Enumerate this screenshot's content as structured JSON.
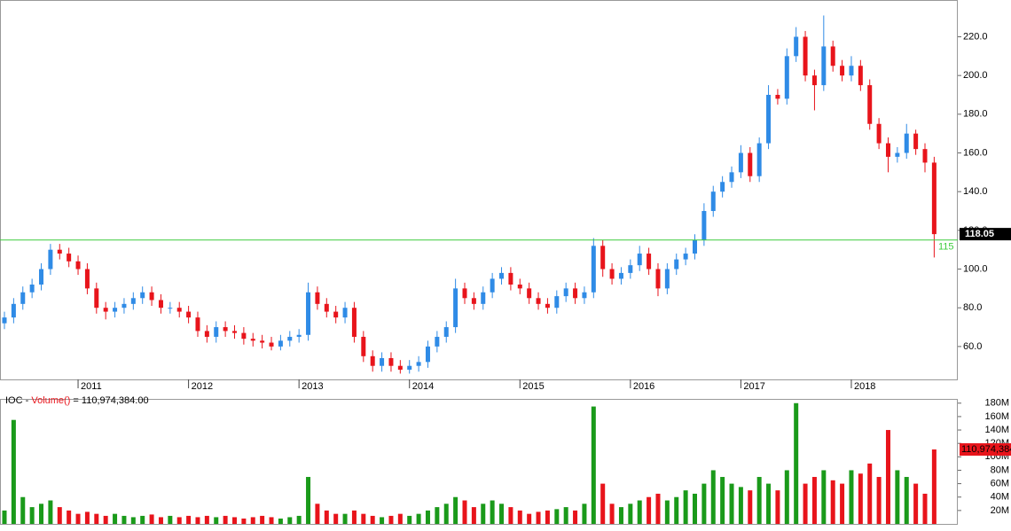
{
  "chart_data": {
    "type": "candlestick",
    "open": [
      72,
      75,
      82,
      88,
      92,
      100,
      110,
      108,
      104,
      100,
      90,
      80,
      78,
      80,
      82,
      85,
      88,
      84,
      80,
      80,
      78,
      75,
      68,
      65,
      70,
      68,
      67,
      64,
      63,
      62,
      60,
      63,
      65,
      66,
      88,
      82,
      78,
      75,
      80,
      65,
      55,
      50,
      54,
      50,
      48,
      50,
      52,
      60,
      65,
      70,
      90,
      85,
      82,
      88,
      95,
      98,
      92,
      90,
      85,
      82,
      80,
      86,
      90,
      85,
      88,
      112,
      100,
      95,
      98,
      102,
      108,
      100,
      90,
      100,
      105,
      108,
      115,
      130,
      140,
      145,
      150,
      160,
      148,
      165,
      190,
      188,
      210,
      220,
      200,
      195,
      215,
      205,
      200,
      205,
      195,
      175,
      165,
      158,
      160,
      170,
      162,
      155
    ],
    "high": [
      78,
      85,
      91,
      95,
      103,
      113,
      113,
      111,
      107,
      103,
      93,
      83,
      83,
      85,
      88,
      91,
      91,
      87,
      83,
      83,
      81,
      78,
      71,
      73,
      73,
      71,
      70,
      67,
      66,
      65,
      66,
      68,
      69,
      93,
      91,
      85,
      81,
      83,
      83,
      68,
      58,
      57,
      57,
      53,
      53,
      55,
      63,
      68,
      73,
      95,
      93,
      88,
      91,
      98,
      101,
      101,
      95,
      93,
      88,
      85,
      89,
      93,
      93,
      91,
      116,
      115,
      103,
      101,
      105,
      112,
      111,
      103,
      103,
      108,
      111,
      118,
      134,
      143,
      148,
      153,
      164,
      163,
      168,
      195,
      193,
      214,
      225,
      223,
      203,
      231,
      218,
      208,
      210,
      208,
      198,
      178,
      168,
      163,
      175,
      172,
      165,
      158
    ],
    "low": [
      69,
      72,
      79,
      85,
      89,
      97,
      105,
      101,
      97,
      87,
      77,
      74,
      75,
      77,
      79,
      82,
      81,
      77,
      77,
      75,
      72,
      65,
      62,
      62,
      65,
      64,
      61,
      60,
      59,
      58,
      58,
      60,
      62,
      63,
      79,
      75,
      72,
      72,
      62,
      52,
      47,
      47,
      47,
      46,
      46,
      47,
      49,
      57,
      62,
      67,
      82,
      79,
      79,
      85,
      92,
      89,
      87,
      82,
      79,
      77,
      77,
      83,
      82,
      82,
      85,
      96,
      92,
      92,
      95,
      99,
      97,
      86,
      87,
      97,
      102,
      105,
      112,
      127,
      137,
      142,
      147,
      145,
      145,
      162,
      185,
      185,
      207,
      197,
      182,
      192,
      202,
      197,
      197,
      192,
      172,
      162,
      150,
      155,
      157,
      159,
      150,
      106
    ],
    "close": [
      75,
      82,
      88,
      92,
      100,
      110,
      108,
      104,
      100,
      90,
      80,
      78,
      80,
      82,
      85,
      88,
      84,
      80,
      80,
      78,
      75,
      68,
      65,
      70,
      68,
      67,
      64,
      63,
      62,
      60,
      63,
      65,
      66,
      88,
      82,
      78,
      75,
      80,
      65,
      55,
      50,
      54,
      50,
      48,
      50,
      52,
      60,
      65,
      70,
      90,
      85,
      82,
      88,
      95,
      98,
      92,
      90,
      85,
      82,
      80,
      86,
      90,
      85,
      88,
      112,
      100,
      95,
      98,
      102,
      108,
      100,
      90,
      100,
      105,
      108,
      115,
      130,
      140,
      145,
      150,
      160,
      148,
      165,
      190,
      188,
      210,
      220,
      200,
      195,
      215,
      205,
      200,
      205,
      195,
      175,
      165,
      158,
      160,
      170,
      162,
      155,
      118.05
    ],
    "volume": [
      20,
      155,
      40,
      25,
      30,
      35,
      25,
      20,
      15,
      18,
      15,
      12,
      15,
      12,
      10,
      12,
      14,
      10,
      12,
      10,
      12,
      10,
      12,
      10,
      12,
      10,
      8,
      10,
      12,
      10,
      8,
      10,
      12,
      70,
      30,
      20,
      15,
      15,
      20,
      15,
      12,
      10,
      12,
      15,
      12,
      15,
      20,
      25,
      30,
      40,
      35,
      25,
      30,
      35,
      30,
      25,
      20,
      15,
      18,
      20,
      22,
      25,
      20,
      30,
      175,
      60,
      30,
      25,
      30,
      35,
      40,
      45,
      35,
      40,
      50,
      45,
      60,
      80,
      70,
      60,
      55,
      50,
      70,
      60,
      50,
      80,
      180,
      60,
      70,
      80,
      65,
      60,
      80,
      75,
      90,
      70,
      140,
      80,
      70,
      60,
      45,
      110.974384
    ],
    "up_color": "#2f8be6",
    "down_color": "#e8141b",
    "volume_up_color": "#1a9a1a",
    "volume_down_color": "#e8141b",
    "ylim": [
      43,
      239
    ],
    "yticks": [
      {
        "value": 60,
        "label": "60.0"
      },
      {
        "value": 80,
        "label": "80.0"
      },
      {
        "value": 100,
        "label": "100.0"
      },
      {
        "value": 120,
        "label": "120.0"
      },
      {
        "value": 140,
        "label": "140.0"
      },
      {
        "value": 160,
        "label": "160.0"
      },
      {
        "value": 180,
        "label": "180.0"
      },
      {
        "value": 200,
        "label": "200.0"
      },
      {
        "value": 220,
        "label": "220.0"
      }
    ],
    "xticks": [
      {
        "value": 8,
        "label": "2011"
      },
      {
        "value": 20,
        "label": "2012"
      },
      {
        "value": 32,
        "label": "2013"
      },
      {
        "value": 44,
        "label": "2014"
      },
      {
        "value": 56,
        "label": "2015"
      },
      {
        "value": 68,
        "label": "2016"
      },
      {
        "value": 80,
        "label": "2017"
      },
      {
        "value": 92,
        "label": "2018"
      }
    ],
    "volume_ylim": [
      0,
      185
    ],
    "volume_ticks": [
      {
        "value": 20,
        "label": "20M"
      },
      {
        "value": 40,
        "label": "40M"
      },
      {
        "value": 60,
        "label": "60M"
      },
      {
        "value": 80,
        "label": "80M"
      },
      {
        "value": 100,
        "label": "100M"
      },
      {
        "value": 120,
        "label": "120M"
      },
      {
        "value": 140,
        "label": "140M"
      },
      {
        "value": 160,
        "label": "160M"
      },
      {
        "value": 180,
        "label": "180M"
      }
    ],
    "reference_line": {
      "value": 115,
      "label": "115",
      "color": "#3dcc3d"
    },
    "volume_legend": {
      "symbol": "IOC - ",
      "name": "Volume()",
      "separator": " = ",
      "value_label": "110,974,384.00"
    }
  }
}
